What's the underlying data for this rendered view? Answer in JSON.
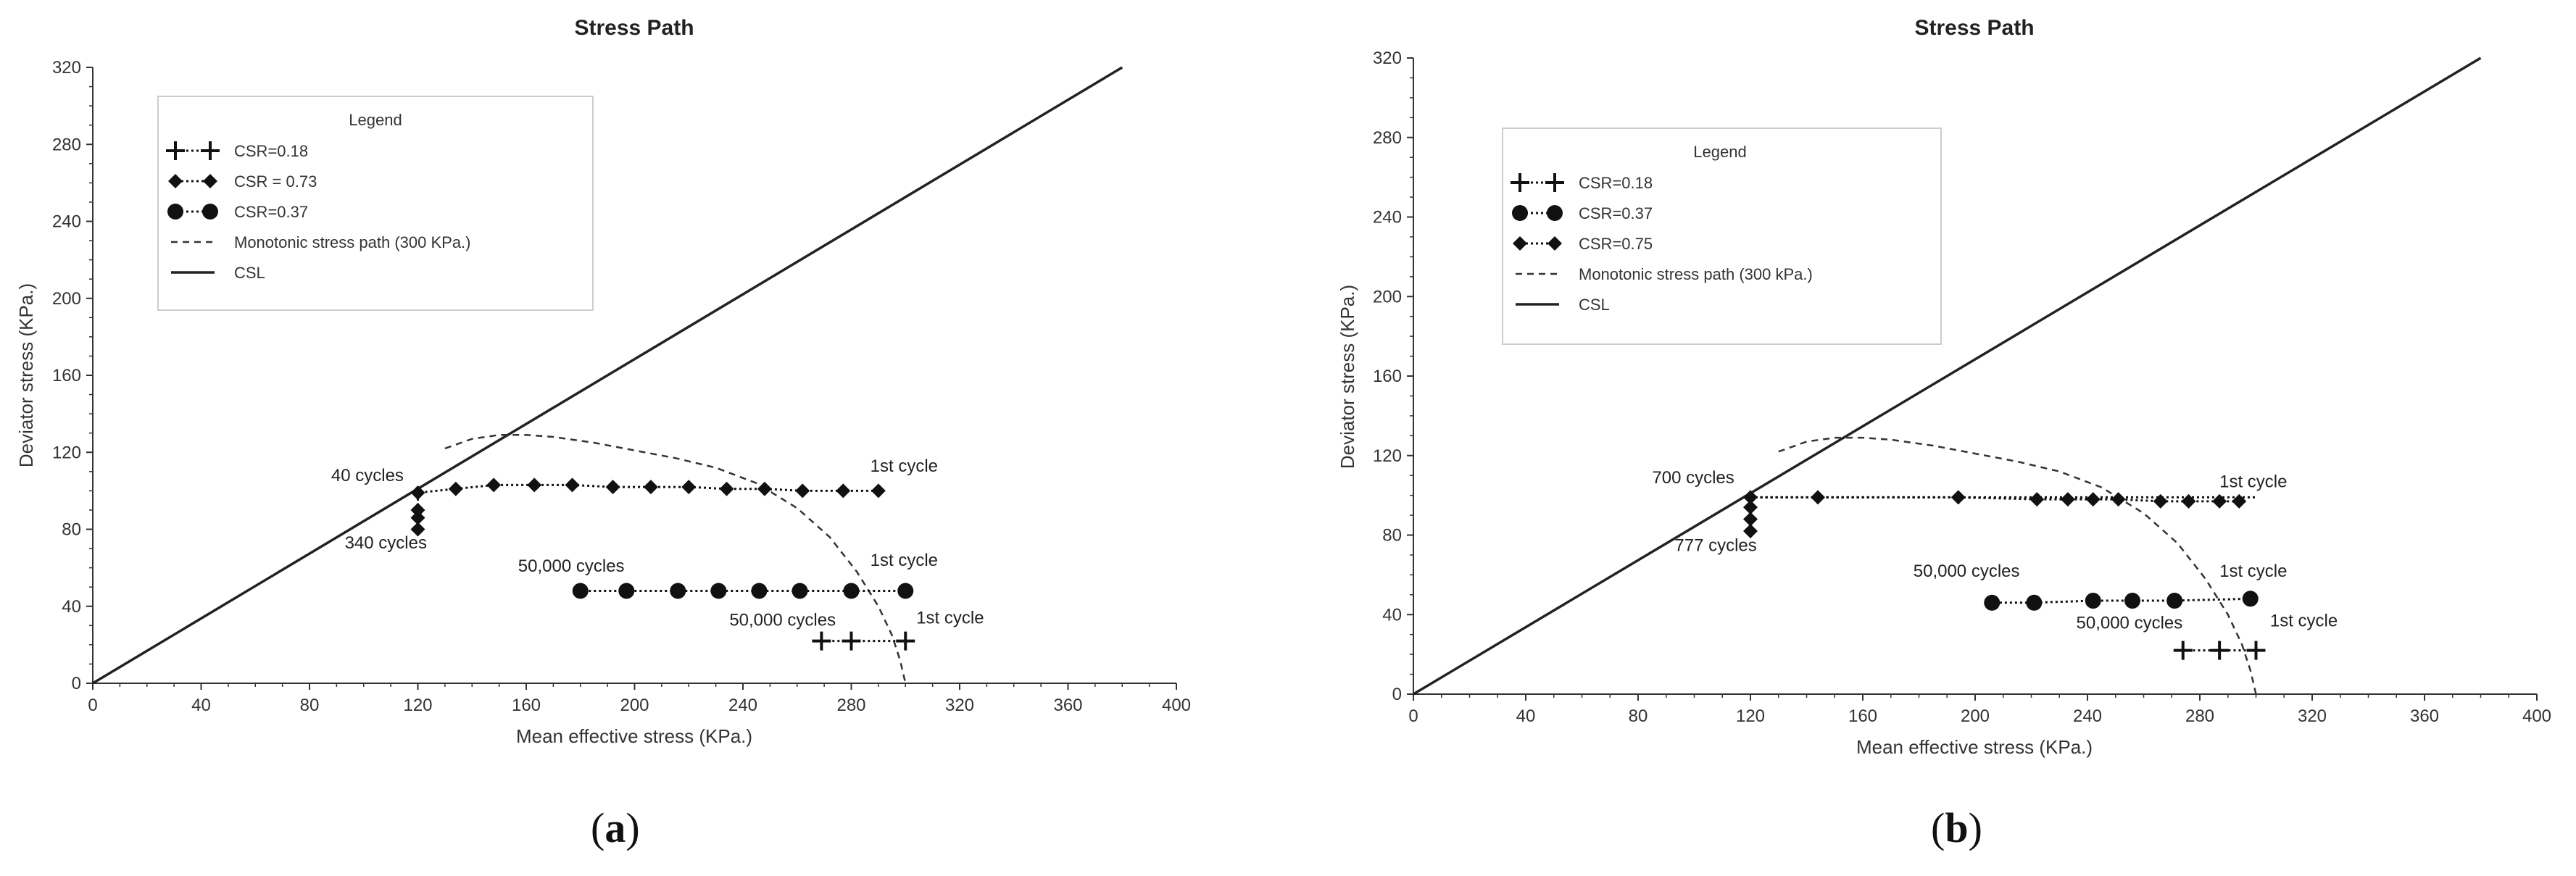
{
  "chart_data": [
    {
      "type": "scatter",
      "panel_label": "a",
      "title": "Stress Path",
      "xlabel": "Mean effective stress (KPa.)",
      "ylabel": "Deviator stress (KPa.)",
      "xlim": [
        0,
        400
      ],
      "ylim": [
        0,
        320
      ],
      "xticks": [
        "0",
        "40",
        "80",
        "120",
        "160",
        "200",
        "240",
        "280",
        "320",
        "360",
        "400"
      ],
      "yticks": [
        "0",
        "40",
        "80",
        "120",
        "160",
        "200",
        "240",
        "280",
        "320"
      ],
      "legend": {
        "title": "Legend",
        "placement": "top-left",
        "entries": [
          "CSR=0.18",
          "CSR = 0.73",
          "CSR=0.37",
          "Monotonic stress path  (300 KPa.)",
          "CSL"
        ]
      },
      "csl": {
        "x": [
          0,
          380
        ],
        "y": [
          0,
          320
        ]
      },
      "monotonic": {
        "x": [
          130,
          140,
          150,
          160,
          170,
          185,
          200,
          215,
          230,
          245,
          260,
          272,
          282,
          290,
          295,
          298,
          300
        ],
        "y": [
          122,
          127,
          129,
          129,
          128,
          125,
          121,
          117,
          112,
          104,
          91,
          76,
          58,
          40,
          25,
          12,
          0
        ]
      },
      "series": [
        {
          "name": "CSR=0.18",
          "marker": "plus",
          "x": [
            300,
            280,
            269
          ],
          "y": [
            22,
            22,
            22
          ]
        },
        {
          "name": "CSR = 0.73",
          "marker": "diamond",
          "x": [
            290,
            277,
            262,
            248,
            234,
            220,
            206,
            192,
            177,
            163,
            148,
            134,
            120,
            120,
            120,
            120
          ],
          "y": [
            100,
            100,
            100,
            101,
            101,
            102,
            102,
            102,
            103,
            103,
            103,
            101,
            99,
            90,
            86,
            80
          ]
        },
        {
          "name": "CSR=0.37",
          "marker": "circle",
          "x": [
            300,
            280,
            261,
            246,
            231,
            216,
            197,
            180
          ],
          "y": [
            48,
            48,
            48,
            48,
            48,
            48,
            48,
            48
          ]
        }
      ],
      "annotations": [
        {
          "text": "40 cycles",
          "x": 88,
          "y": 105
        },
        {
          "text": "340 cycles",
          "x": 93,
          "y": 70
        },
        {
          "text": "1st cycle",
          "x": 287,
          "y": 110
        },
        {
          "text": "50,000 cycles",
          "x": 157,
          "y": 58
        },
        {
          "text": "1st cycle",
          "x": 287,
          "y": 61
        },
        {
          "text": "50,000 cycles",
          "x": 235,
          "y": 30
        },
        {
          "text": "1st cycle",
          "x": 304,
          "y": 31
        }
      ]
    },
    {
      "type": "scatter",
      "panel_label": "b",
      "title": "Stress Path",
      "xlabel": "Mean effective stress (KPa.)",
      "ylabel": "Deviator stress (KPa.)",
      "xlim": [
        0,
        400
      ],
      "ylim": [
        0,
        320
      ],
      "xticks": [
        "0",
        "40",
        "80",
        "120",
        "160",
        "200",
        "240",
        "280",
        "320",
        "360",
        "400"
      ],
      "yticks": [
        "0",
        "40",
        "80",
        "120",
        "160",
        "200",
        "240",
        "280",
        "320"
      ],
      "legend": {
        "title": "Legend",
        "placement": "top-left",
        "entries": [
          "CSR=0.18",
          "CSR=0.37",
          "CSR=0.75",
          "Monotonic stress path (300 kPa.)",
          "CSL"
        ]
      },
      "csl": {
        "x": [
          0,
          380
        ],
        "y": [
          0,
          320
        ]
      },
      "monotonic": {
        "x": [
          130,
          140,
          150,
          160,
          170,
          185,
          200,
          215,
          230,
          245,
          260,
          272,
          282,
          290,
          295,
          298,
          300
        ],
        "y": [
          122,
          127,
          129,
          129,
          128,
          125,
          121,
          117,
          112,
          104,
          91,
          76,
          58,
          40,
          25,
          12,
          0
        ]
      },
      "series": [
        {
          "name": "CSR=0.18",
          "marker": "plus",
          "x": [
            300,
            287,
            274
          ],
          "y": [
            22,
            22,
            22
          ]
        },
        {
          "name": "CSR=0.37",
          "marker": "circle",
          "x": [
            298,
            271,
            256,
            242,
            221,
            206
          ],
          "y": [
            48,
            47,
            47,
            47,
            46,
            46
          ]
        },
        {
          "name": "CSR=0.75",
          "marker": "diamond",
          "x": [
            294,
            287,
            276,
            266,
            251,
            242,
            233,
            222,
            194,
            144,
            120,
            120,
            120,
            120
          ],
          "y": [
            97,
            97,
            97,
            97,
            98,
            98,
            98,
            98,
            99,
            99,
            99,
            94,
            88,
            82
          ]
        },
        {
          "name": "",
          "marker": "none",
          "x": [
            120,
            300
          ],
          "y": [
            99,
            99
          ]
        }
      ],
      "annotations": [
        {
          "text": "700 cycles",
          "x": 85,
          "y": 106
        },
        {
          "text": "777 cycles",
          "x": 93,
          "y": 72
        },
        {
          "text": "1st cycle",
          "x": 287,
          "y": 104
        },
        {
          "text": "50,000 cycles",
          "x": 178,
          "y": 59
        },
        {
          "text": "1st cycle",
          "x": 287,
          "y": 59
        },
        {
          "text": "50,000 cycles",
          "x": 236,
          "y": 33
        },
        {
          "text": "1st cycle",
          "x": 305,
          "y": 34
        }
      ]
    }
  ]
}
